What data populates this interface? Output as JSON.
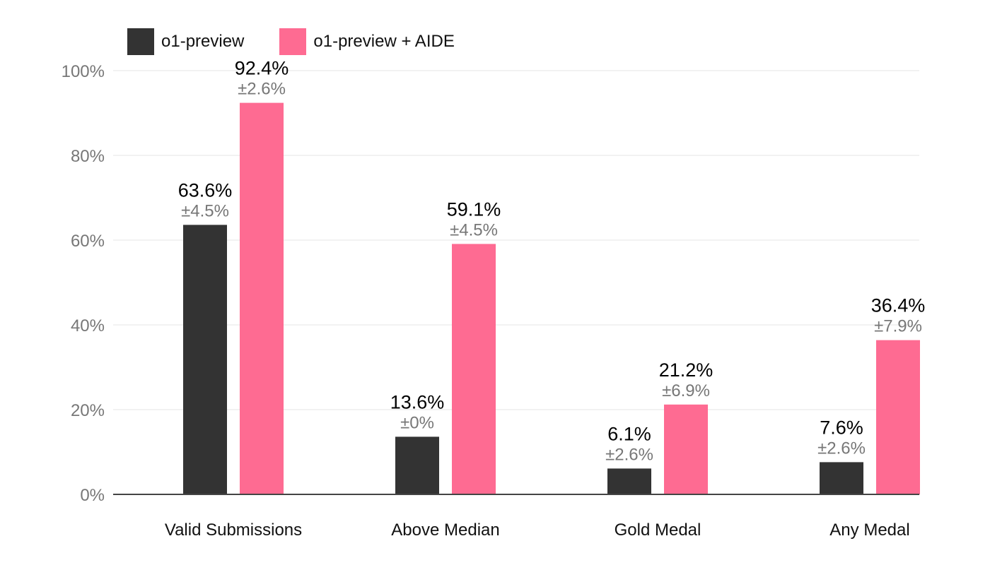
{
  "chart_data": {
    "type": "bar",
    "title": "",
    "xlabel": "",
    "ylabel": "",
    "ylim": [
      0,
      100
    ],
    "yticks": [
      "0%",
      "20%",
      "40%",
      "60%",
      "80%",
      "100%"
    ],
    "grid": true,
    "legend_position": "top-left",
    "categories": [
      "Valid Submissions",
      "Above Median",
      "Gold Medal",
      "Any Medal"
    ],
    "series": [
      {
        "name": "o1-preview",
        "color": "#333333",
        "values": [
          63.6,
          13.6,
          6.1,
          7.6
        ],
        "value_labels": [
          "63.6%",
          "13.6%",
          "6.1%",
          "7.6%"
        ],
        "error_labels": [
          "±4.5%",
          "±0%",
          "±2.6%",
          "±2.6%"
        ]
      },
      {
        "name": "o1-preview + AIDE",
        "color": "#fe6b92",
        "values": [
          92.4,
          59.1,
          21.2,
          36.4
        ],
        "value_labels": [
          "92.4%",
          "59.1%",
          "21.2%",
          "36.4%"
        ],
        "error_labels": [
          "±2.6%",
          "±4.5%",
          "±6.9%",
          "±7.9%"
        ]
      }
    ]
  }
}
